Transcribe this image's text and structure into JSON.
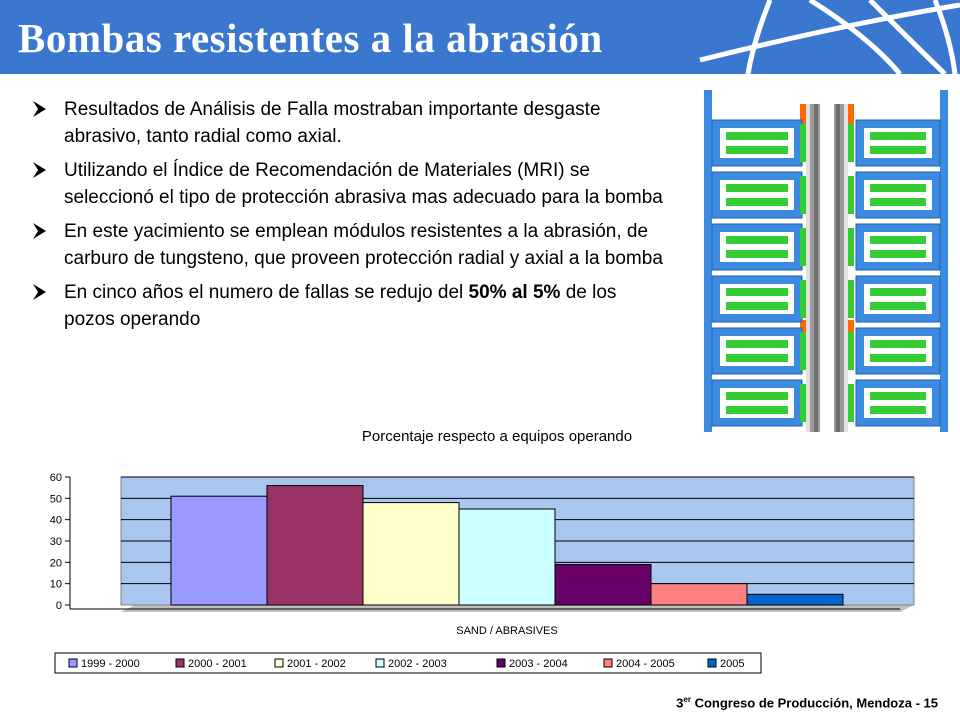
{
  "slide": {
    "title": "Bombas resistentes a la abrasión",
    "bullets": [
      {
        "parts": [
          {
            "text": "Resultados de Análisis de Falla mostraban importante desgaste abrasivo, tanto radial como axial.",
            "bold": false
          }
        ]
      },
      {
        "parts": [
          {
            "text": "Utilizando el Índice de Recomendación de Materiales (MRI) se seleccionó el tipo de protección abrasiva mas adecuado para la bomba",
            "bold": false
          }
        ]
      },
      {
        "parts": [
          {
            "text": "En este yacimiento se emplean módulos resistentes a la abrasión, de carburo de tungsteno,  que proveen protección radial y axial a la bomba",
            "bold": false
          }
        ]
      },
      {
        "parts": [
          {
            "text": "En cinco años el numero de fallas se redujo del ",
            "bold": false
          },
          {
            "text": "50% al 5%",
            "bold": true
          },
          {
            "text": " de los pozos operando",
            "bold": false
          }
        ]
      }
    ],
    "footer": {
      "ordinal": "3",
      "ordinal_suffix": "er",
      "text": " Congreso de Producción, Mendoza  -  15"
    }
  },
  "colors": {
    "header": "#3a78cf",
    "plot_background": "#a8c6ee",
    "floor": "#bebebe",
    "bullet_arrow": "#000000"
  },
  "chart_data": {
    "type": "bar",
    "title": "Porcentaje respecto a equipos operando",
    "xlabel": "SAND / ABRASIVES",
    "ylabel": "",
    "ylim": [
      0,
      60
    ],
    "yticks": [
      0,
      10,
      20,
      30,
      40,
      50,
      60
    ],
    "grid": true,
    "legend_position": "bottom",
    "categories": [
      "SAND / ABRASIVES"
    ],
    "series": [
      {
        "name": "1999 - 2000",
        "values": [
          51
        ],
        "color": "#9999ff"
      },
      {
        "name": "2000 - 2001",
        "values": [
          56
        ],
        "color": "#993366"
      },
      {
        "name": "2001 - 2002",
        "values": [
          48
        ],
        "color": "#ffffcc"
      },
      {
        "name": "2002 - 2003",
        "values": [
          45
        ],
        "color": "#ccffff"
      },
      {
        "name": "2003 - 2004",
        "values": [
          19
        ],
        "color": "#660066"
      },
      {
        "name": "2004 - 2005",
        "values": [
          10
        ],
        "color": "#ff8080"
      },
      {
        "name": "2005",
        "values": [
          5
        ],
        "color": "#0066cc"
      }
    ]
  }
}
